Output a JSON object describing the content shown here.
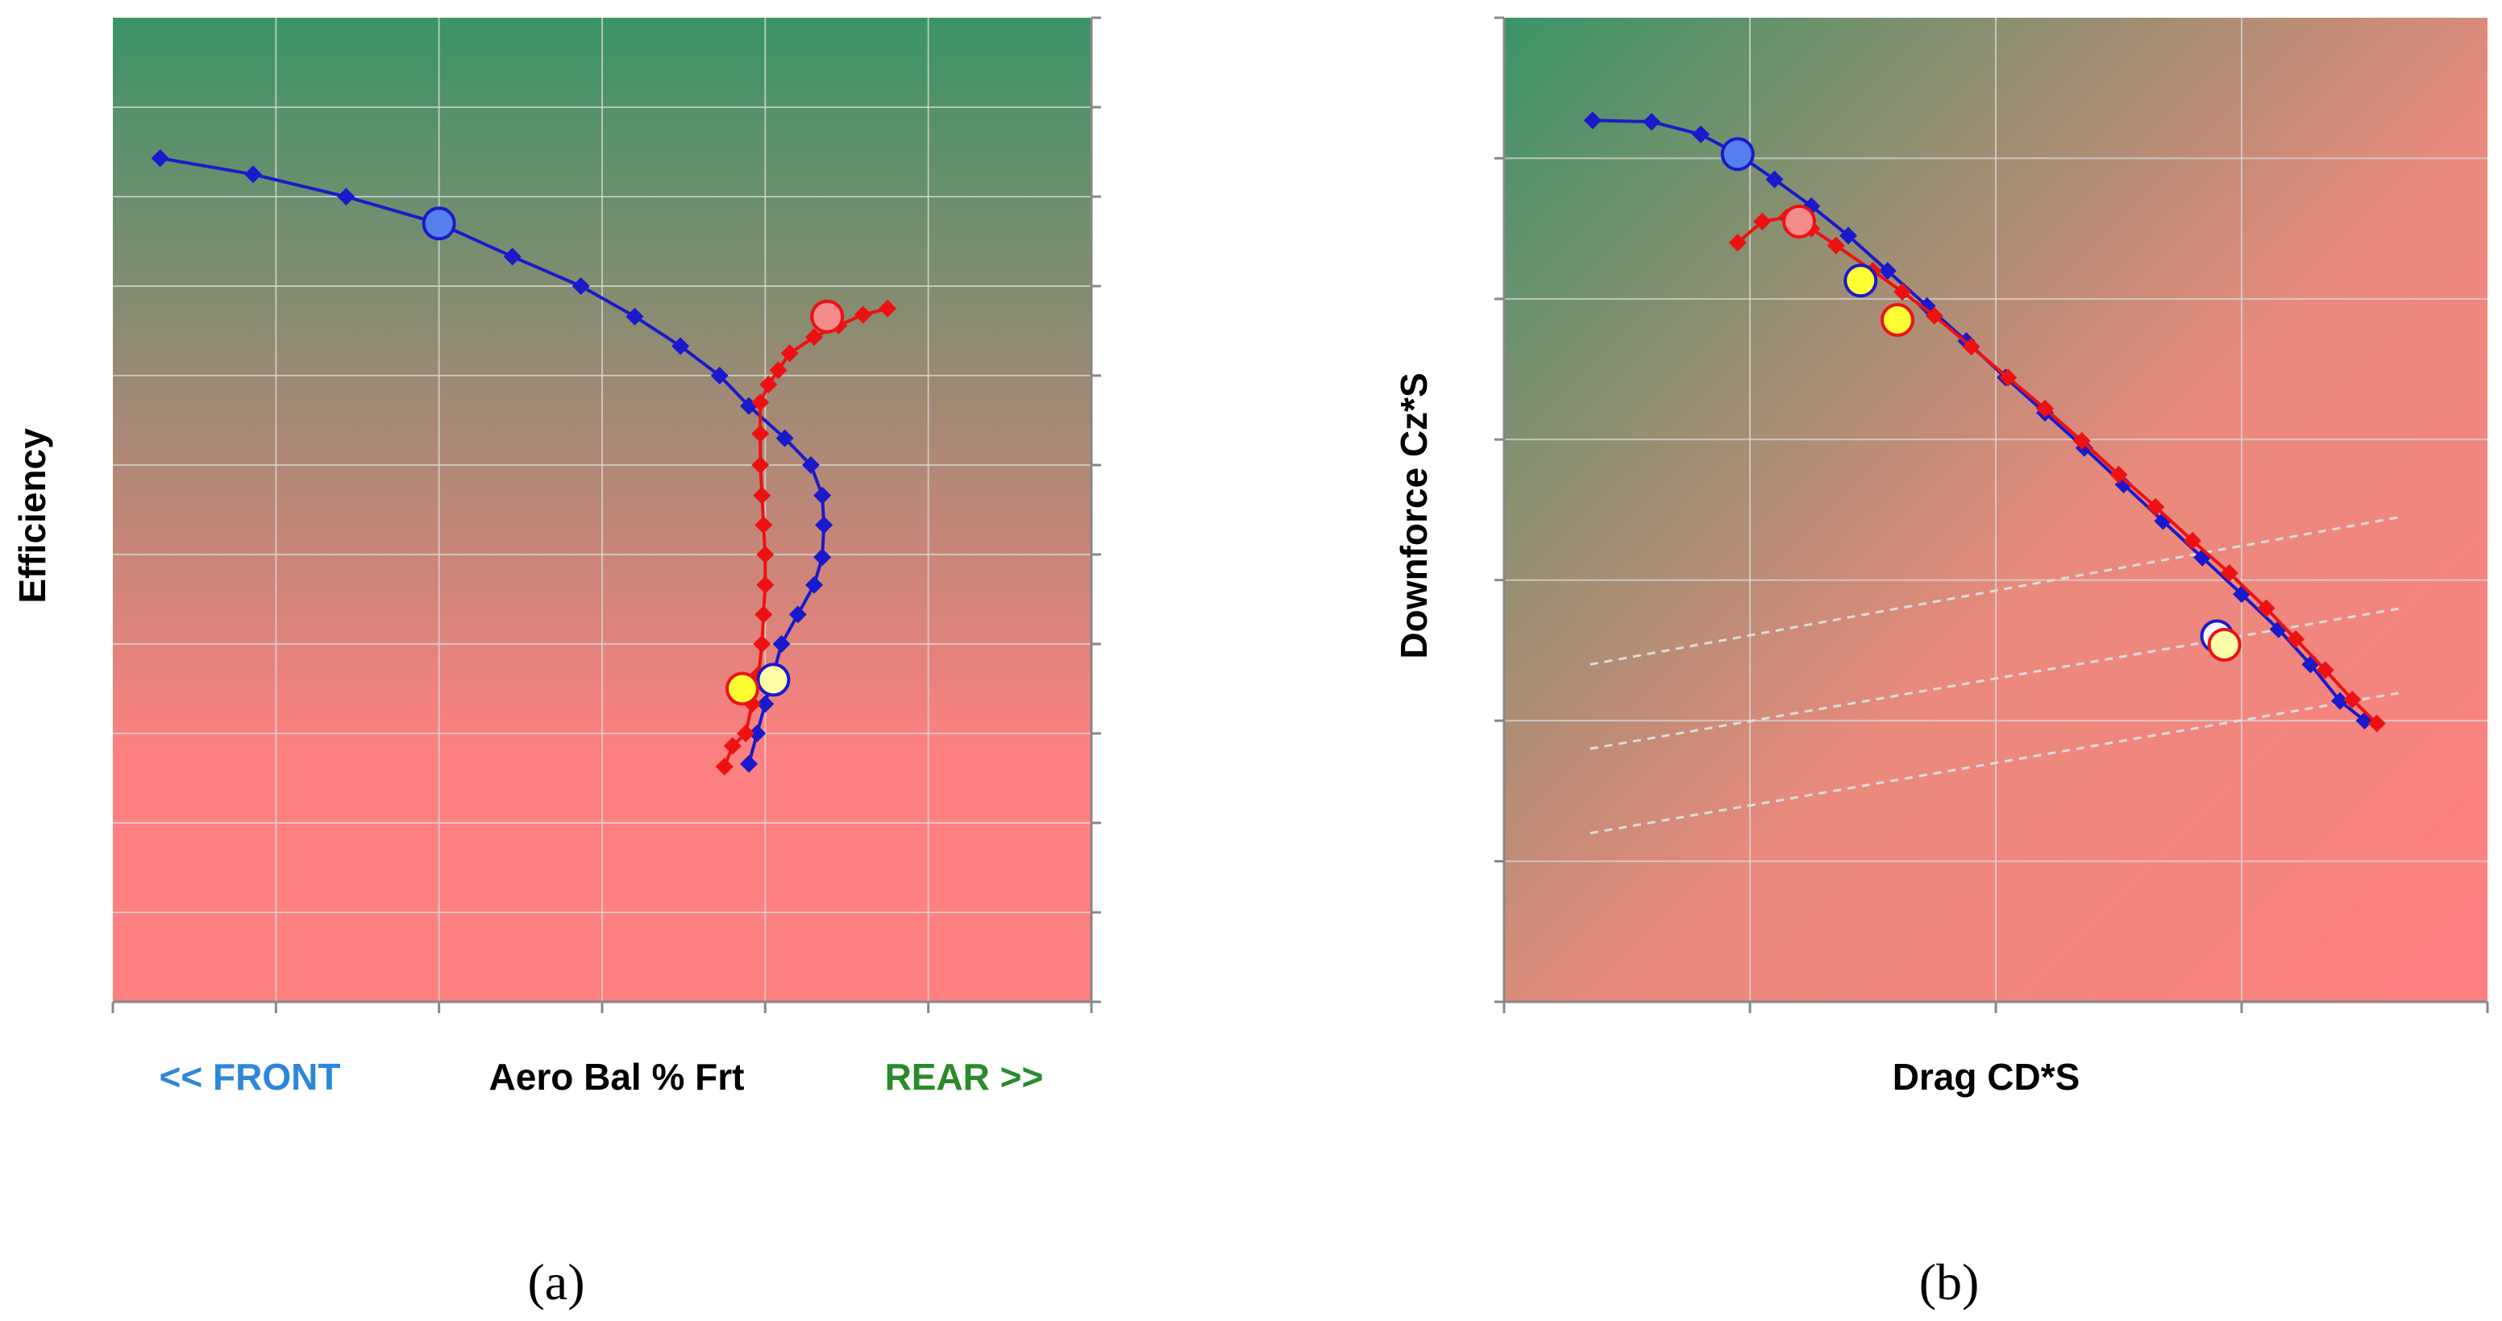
{
  "colors": {
    "blue_series": "#1a1acc",
    "red_series": "#ee1111",
    "gradient_green": "#3a9467",
    "gradient_pink": "#ff8080",
    "front_label": "#2e86d8",
    "rear_label": "#2a8a2a",
    "marker_blue": "#5580ee",
    "marker_pink": "#f48c8c",
    "marker_yellow": "#ffff33",
    "marker_pale_yellow": "#ffffa8"
  },
  "chart_data": [
    {
      "id": "a",
      "type": "line",
      "sublabel": "(a)",
      "xlabel_left": "<< FRONT",
      "xlabel": "Aero Bal % Frt",
      "xlabel_right": "REAR >>",
      "ylabel": "Efficiency",
      "xlim": [
        0,
        6
      ],
      "ylim": [
        0,
        11
      ],
      "x_ticks": 6,
      "y_ticks": 11,
      "grid": true,
      "series": [
        {
          "name": "blue",
          "color": "#1a1acc",
          "points": [
            [
              0.29,
              9.43
            ],
            [
              0.86,
              9.25
            ],
            [
              1.43,
              9.0
            ],
            [
              2.0,
              8.7
            ],
            [
              2.45,
              8.33
            ],
            [
              2.87,
              8.0
            ],
            [
              3.2,
              7.66
            ],
            [
              3.48,
              7.33
            ],
            [
              3.72,
              7.0
            ],
            [
              3.9,
              6.66
            ],
            [
              4.12,
              6.3
            ],
            [
              4.28,
              6.0
            ],
            [
              4.35,
              5.66
            ],
            [
              4.36,
              5.33
            ],
            [
              4.35,
              4.97
            ],
            [
              4.3,
              4.66
            ],
            [
              4.2,
              4.33
            ],
            [
              4.1,
              4.0
            ],
            [
              4.05,
              3.66
            ],
            [
              4.0,
              3.33
            ],
            [
              3.95,
              3.0
            ],
            [
              3.9,
              2.66
            ]
          ]
        },
        {
          "name": "red",
          "color": "#ee1111",
          "points": [
            [
              4.75,
              7.75
            ],
            [
              4.6,
              7.68
            ],
            [
              4.45,
              7.56
            ],
            [
              4.3,
              7.43
            ],
            [
              4.15,
              7.25
            ],
            [
              4.08,
              7.06
            ],
            [
              4.02,
              6.9
            ],
            [
              3.97,
              6.7
            ],
            [
              3.97,
              6.35
            ],
            [
              3.97,
              6.0
            ],
            [
              3.98,
              5.66
            ],
            [
              3.99,
              5.33
            ],
            [
              4.0,
              5.0
            ],
            [
              4.0,
              4.66
            ],
            [
              3.99,
              4.33
            ],
            [
              3.98,
              4.0
            ],
            [
              3.96,
              3.66
            ],
            [
              3.92,
              3.33
            ],
            [
              3.88,
              3.0
            ],
            [
              3.8,
              2.86
            ],
            [
              3.75,
              2.63
            ]
          ]
        }
      ],
      "markers": [
        {
          "series": "blue",
          "x": 2.0,
          "y": 8.7,
          "fill": "#5580ee",
          "stroke": "#1a1acc",
          "size": "large"
        },
        {
          "series": "red",
          "x": 4.38,
          "y": 7.66,
          "fill": "#f48c8c",
          "stroke": "#ee1111",
          "size": "large"
        },
        {
          "series": "blue",
          "x": 4.05,
          "y": 3.6,
          "fill": "#ffffa8",
          "stroke": "#1a1acc",
          "size": "large"
        },
        {
          "series": "red",
          "x": 3.86,
          "y": 3.5,
          "fill": "#ffff33",
          "stroke": "#ee1111",
          "size": "large"
        }
      ]
    },
    {
      "id": "b",
      "type": "line",
      "sublabel": "(b)",
      "xlabel": "Drag CD*S",
      "ylabel": "Downforce Cz*S",
      "xlim": [
        0,
        4
      ],
      "ylim": [
        0,
        7
      ],
      "x_ticks": 4,
      "y_ticks": 7,
      "grid": true,
      "reference_lines": [
        {
          "x": [
            0.35,
            3.65
          ],
          "y": [
            2.4,
            3.45
          ]
        },
        {
          "x": [
            0.35,
            3.65
          ],
          "y": [
            1.8,
            2.8
          ]
        },
        {
          "x": [
            0.35,
            3.65
          ],
          "y": [
            1.2,
            2.2
          ]
        }
      ],
      "series": [
        {
          "name": "blue",
          "color": "#1a1acc",
          "points": [
            [
              0.36,
              6.27
            ],
            [
              0.6,
              6.26
            ],
            [
              0.8,
              6.17
            ],
            [
              0.95,
              6.03
            ],
            [
              1.1,
              5.85
            ],
            [
              1.25,
              5.66
            ],
            [
              1.4,
              5.45
            ],
            [
              1.56,
              5.2
            ],
            [
              1.72,
              4.95
            ],
            [
              1.88,
              4.7
            ],
            [
              2.04,
              4.44
            ],
            [
              2.2,
              4.19
            ],
            [
              2.36,
              3.94
            ],
            [
              2.52,
              3.68
            ],
            [
              2.68,
              3.42
            ],
            [
              2.84,
              3.16
            ],
            [
              3.0,
              2.9
            ],
            [
              3.15,
              2.65
            ],
            [
              3.28,
              2.4
            ],
            [
              3.4,
              2.14
            ],
            [
              3.5,
              2.0
            ]
          ]
        },
        {
          "name": "red",
          "color": "#ee1111",
          "points": [
            [
              0.95,
              5.4
            ],
            [
              1.05,
              5.55
            ],
            [
              1.15,
              5.58
            ],
            [
              1.25,
              5.5
            ],
            [
              1.35,
              5.38
            ],
            [
              1.5,
              5.2
            ],
            [
              1.62,
              5.05
            ],
            [
              1.75,
              4.88
            ],
            [
              1.9,
              4.66
            ],
            [
              2.05,
              4.44
            ],
            [
              2.2,
              4.22
            ],
            [
              2.35,
              3.99
            ],
            [
              2.5,
              3.75
            ],
            [
              2.65,
              3.52
            ],
            [
              2.8,
              3.28
            ],
            [
              2.95,
              3.05
            ],
            [
              3.1,
              2.8
            ],
            [
              3.22,
              2.58
            ],
            [
              3.34,
              2.36
            ],
            [
              3.45,
              2.15
            ],
            [
              3.55,
              1.98
            ]
          ]
        }
      ],
      "markers": [
        {
          "series": "blue",
          "x": 0.95,
          "y": 6.03,
          "fill": "#5580ee",
          "stroke": "#1a1acc",
          "size": "large"
        },
        {
          "series": "red",
          "x": 1.2,
          "y": 5.55,
          "fill": "#f48c8c",
          "stroke": "#ee1111",
          "size": "large"
        },
        {
          "series": "blue",
          "x": 1.45,
          "y": 5.13,
          "fill": "#ffff33",
          "stroke": "#1a1acc",
          "size": "large"
        },
        {
          "series": "red",
          "x": 1.6,
          "y": 4.85,
          "fill": "#ffff33",
          "stroke": "#ee1111",
          "size": "large"
        },
        {
          "series": "blue",
          "x": 2.9,
          "y": 2.6,
          "fill": "#ffffff",
          "stroke": "#1a1acc",
          "size": "large"
        },
        {
          "series": "red",
          "x": 2.93,
          "y": 2.54,
          "fill": "#ffffa8",
          "stroke": "#ee1111",
          "size": "large"
        }
      ]
    }
  ]
}
